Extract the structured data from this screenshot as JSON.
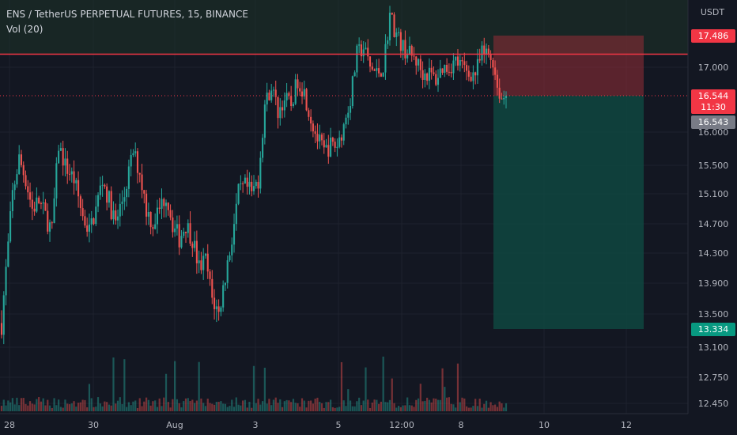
{
  "header": {
    "symbol_line": "ENS / TetherUS PERPETUAL FUTURES, 15, BINANCE",
    "indicator": "Vol (20)"
  },
  "colors": {
    "background": "#131722",
    "up": "#26a69a",
    "down": "#ef5350",
    "grid": "#1e222d",
    "text": "#b2b5be",
    "resistance_line": "#f23645",
    "stop_zone": "#8b2c36",
    "target_zone": "#0f4a42",
    "last_price_label": "#f23645",
    "target_label": "#089981",
    "prev_close_label": "#787b86"
  },
  "chart_data": {
    "type": "candlestick",
    "y_axis_unit": "USDT",
    "ylim": [
      12.35,
      18.1
    ],
    "y_ticks": [
      "17.000",
      "16.000",
      "15.500",
      "15.100",
      "14.700",
      "14.300",
      "13.900",
      "13.500",
      "13.100",
      "12.750",
      "12.450"
    ],
    "x_ticks": [
      "28",
      "30",
      "Aug",
      "3",
      "5",
      "12:00",
      "8",
      "10",
      "12"
    ],
    "price_labels": {
      "stop": "17.486",
      "last_price": "16.544",
      "countdown": "11:30",
      "prev_close": "16.543",
      "target": "13.334"
    },
    "horizontal_line": 17.2,
    "position": {
      "entry": 16.544,
      "stop": 17.486,
      "target": 13.334
    },
    "close_series": [
      {
        "i": 0,
        "v": 13.4
      },
      {
        "i": 3,
        "v": 14.4
      },
      {
        "i": 5,
        "v": 15.1
      },
      {
        "i": 8,
        "v": 15.6
      },
      {
        "i": 11,
        "v": 15.3
      },
      {
        "i": 14,
        "v": 14.9
      },
      {
        "i": 17,
        "v": 15.0
      },
      {
        "i": 20,
        "v": 14.8
      },
      {
        "i": 23,
        "v": 14.6
      },
      {
        "i": 26,
        "v": 15.8
      },
      {
        "i": 29,
        "v": 15.5
      },
      {
        "i": 33,
        "v": 15.3
      },
      {
        "i": 37,
        "v": 14.8
      },
      {
        "i": 40,
        "v": 14.6
      },
      {
        "i": 43,
        "v": 14.9
      },
      {
        "i": 46,
        "v": 15.3
      },
      {
        "i": 49,
        "v": 15.0
      },
      {
        "i": 52,
        "v": 14.7
      },
      {
        "i": 56,
        "v": 15.1
      },
      {
        "i": 60,
        "v": 15.7
      },
      {
        "i": 63,
        "v": 15.4
      },
      {
        "i": 66,
        "v": 14.9
      },
      {
        "i": 69,
        "v": 14.7
      },
      {
        "i": 72,
        "v": 14.9
      },
      {
        "i": 75,
        "v": 15.1
      },
      {
        "i": 78,
        "v": 14.7
      },
      {
        "i": 81,
        "v": 14.5
      },
      {
        "i": 84,
        "v": 14.7
      },
      {
        "i": 87,
        "v": 14.5
      },
      {
        "i": 90,
        "v": 14.1
      },
      {
        "i": 93,
        "v": 14.2
      },
      {
        "i": 96,
        "v": 13.7
      },
      {
        "i": 99,
        "v": 13.5
      },
      {
        "i": 102,
        "v": 14.0
      },
      {
        "i": 105,
        "v": 14.5
      },
      {
        "i": 108,
        "v": 15.1
      },
      {
        "i": 111,
        "v": 15.2
      },
      {
        "i": 114,
        "v": 15.1
      },
      {
        "i": 117,
        "v": 15.3
      },
      {
        "i": 120,
        "v": 16.4
      },
      {
        "i": 123,
        "v": 16.7
      },
      {
        "i": 126,
        "v": 16.3
      },
      {
        "i": 129,
        "v": 16.5
      },
      {
        "i": 132,
        "v": 16.4
      },
      {
        "i": 135,
        "v": 16.8
      },
      {
        "i": 138,
        "v": 16.6
      },
      {
        "i": 141,
        "v": 16.2
      },
      {
        "i": 144,
        "v": 15.9
      },
      {
        "i": 147,
        "v": 15.7
      },
      {
        "i": 150,
        "v": 15.8
      },
      {
        "i": 153,
        "v": 15.8
      },
      {
        "i": 156,
        "v": 16.1
      },
      {
        "i": 159,
        "v": 16.5
      },
      {
        "i": 162,
        "v": 17.2
      },
      {
        "i": 165,
        "v": 17.3
      },
      {
        "i": 168,
        "v": 17.0
      },
      {
        "i": 171,
        "v": 16.9
      },
      {
        "i": 174,
        "v": 17.0
      },
      {
        "i": 177,
        "v": 17.8
      },
      {
        "i": 180,
        "v": 17.5
      },
      {
        "i": 183,
        "v": 17.3
      },
      {
        "i": 186,
        "v": 17.2
      },
      {
        "i": 189,
        "v": 17.1
      },
      {
        "i": 192,
        "v": 16.9
      },
      {
        "i": 195,
        "v": 16.9
      },
      {
        "i": 198,
        "v": 16.8
      },
      {
        "i": 201,
        "v": 17.0
      },
      {
        "i": 204,
        "v": 17.0
      },
      {
        "i": 207,
        "v": 17.1
      },
      {
        "i": 210,
        "v": 17.0
      },
      {
        "i": 213,
        "v": 16.9
      },
      {
        "i": 216,
        "v": 16.9
      },
      {
        "i": 219,
        "v": 17.2
      },
      {
        "i": 222,
        "v": 17.2
      },
      {
        "i": 224,
        "v": 17.1
      },
      {
        "i": 226,
        "v": 16.7
      },
      {
        "i": 228,
        "v": 16.5
      },
      {
        "i": 230,
        "v": 16.544
      }
    ]
  }
}
